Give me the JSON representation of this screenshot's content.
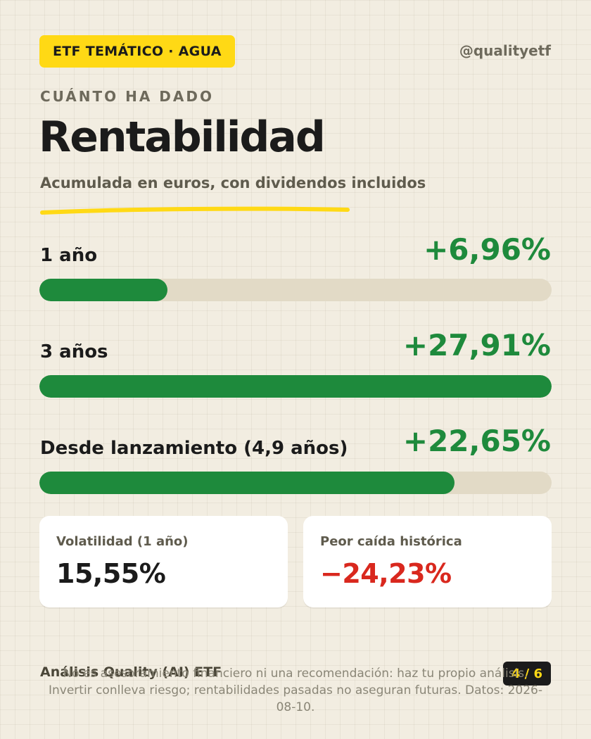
{
  "header": {
    "badge": "ETF TEMÁTICO · AGUA",
    "handle": "@qualityetf"
  },
  "kicker": "CUÁNTO HA DADO",
  "title": "Rentabilidad",
  "subtitle": "Acumulada en euros, con dividendos incluidos",
  "returns": [
    {
      "label": "1 año",
      "value": "+6,96%",
      "bar_fill_pct": 25
    },
    {
      "label": "3 años",
      "value": "+27,91%",
      "bar_fill_pct": 100
    },
    {
      "label": "Desde lanzamiento (4,9 años)",
      "value": "+22,65%",
      "bar_fill_pct": 81
    }
  ],
  "cards": [
    {
      "label": "Volatilidad (1 año)",
      "value": "15,55%"
    },
    {
      "label": "Peor caída histórica",
      "value": "−24,23%"
    }
  ],
  "footer": {
    "brand": "Análisis Quality (AI) ETF",
    "page": "4 / 6",
    "disclaimer": "No es asesoramiento financiero ni una recomendación: haz tu propio análisis. Invertir conlleva riesgo; rentabilidades pasadas no aseguran futuras. Datos: 2026-08-10."
  },
  "colors": {
    "background": "#f2ede1",
    "accent_yellow": "#ffd915",
    "positive_green": "#1e8a3c",
    "negative_red": "#d9281e",
    "track": "#e2dac6"
  }
}
